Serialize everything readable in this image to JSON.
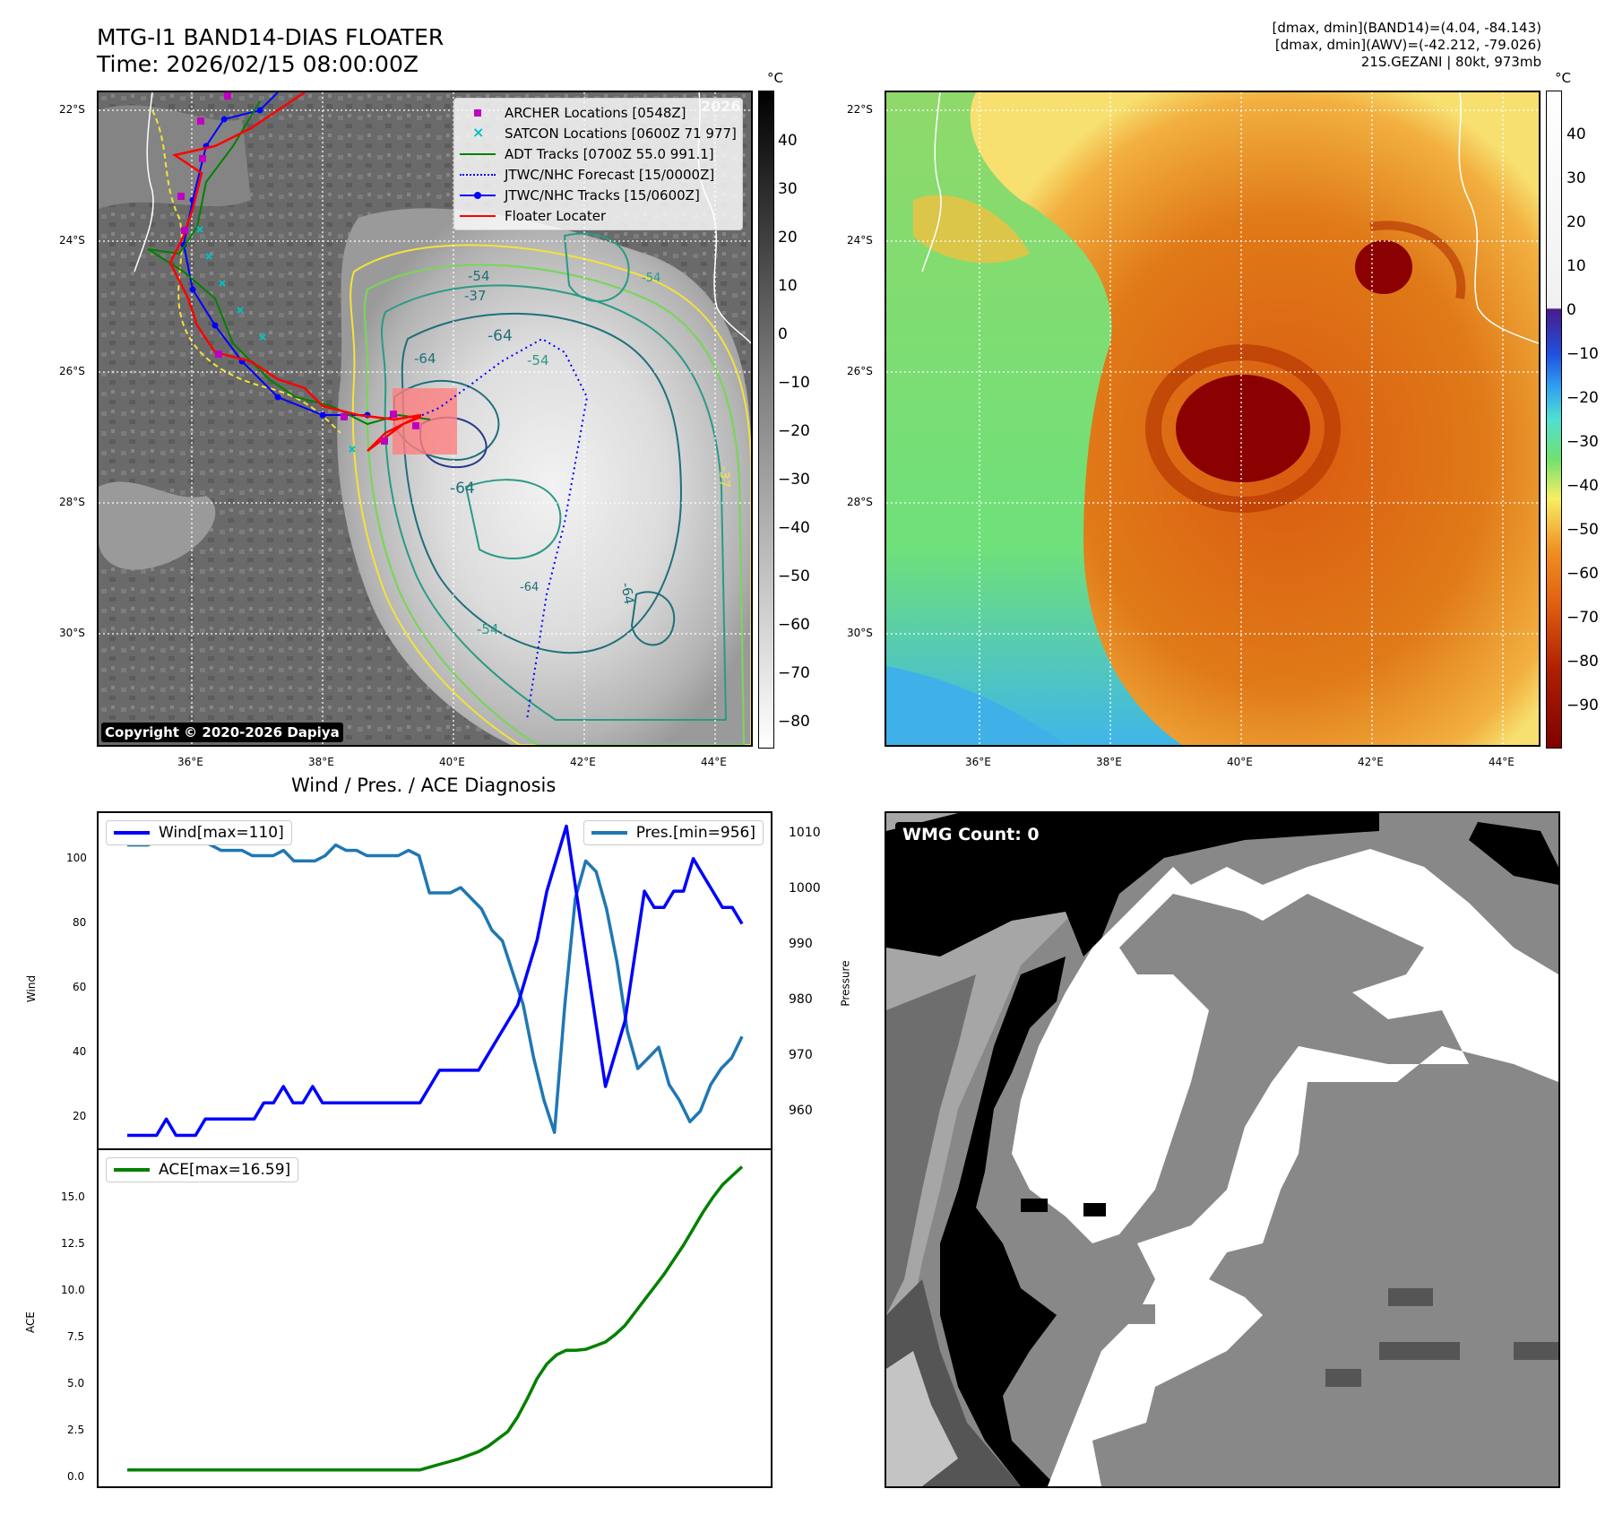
{
  "header": {
    "title_line1": "MTG-I1 BAND14-DIAS FLOATER",
    "title_line2": "Time: 2026/02/15 08:00:00Z",
    "info_line1": "[dmax, dmin](BAND14)=(4.04, -84.143)",
    "info_line2": "[dmax, dmin](AWV)=(-42.212, -79.026)",
    "info_line3": "21S.GEZANI | 80kt, 973mb"
  },
  "map": {
    "lat_labels": [
      "22°S",
      "24°S",
      "26°S",
      "28°S",
      "30°S"
    ],
    "lon_labels": [
      "36°E",
      "38°E",
      "40°E",
      "42°E",
      "44°E"
    ],
    "watermark": "2026",
    "copyright": "Copyright © 2020-2026 Dapiya",
    "contour_labels": [
      "-54",
      "-37",
      "-64",
      "-64",
      "-54",
      "-64",
      "-54",
      "-64",
      "-37",
      "-54",
      "-64"
    ],
    "colors": {
      "yellow": "#f4e23a",
      "light_green": "#7bd45c",
      "teal": "#2a9a86",
      "dark_teal": "#1f6f7a",
      "navy": "#2a3a8a"
    }
  },
  "legend": {
    "items": [
      {
        "label": "ARCHER Locations [0548Z]",
        "color": "#c000c0",
        "kind": "square"
      },
      {
        "label": "SATCON Locations [0600Z 71 977]",
        "color": "#00c0c0",
        "kind": "x"
      },
      {
        "label": "ADT Tracks [0700Z 55.0 991.1]",
        "color": "#008000",
        "kind": "line"
      },
      {
        "label": "JTWC/NHC Forecast [15/0000Z]",
        "color": "#0000ff",
        "kind": "dotted"
      },
      {
        "label": "JTWC/NHC Tracks [15/0600Z]",
        "color": "#0000ff",
        "kind": "line-dot"
      },
      {
        "label": "Floater Locater",
        "color": "#ff0000",
        "kind": "line"
      }
    ]
  },
  "colorbar1": {
    "unit": "°C",
    "ticks": [
      "40",
      "30",
      "20",
      "10",
      "0",
      "−10",
      "−20",
      "−30",
      "−40",
      "−50",
      "−60",
      "−70",
      "−80"
    ]
  },
  "colorbar2": {
    "unit": "°C",
    "ticks": [
      "40",
      "30",
      "20",
      "10",
      "0",
      "−10",
      "−20",
      "−30",
      "−40",
      "−50",
      "−60",
      "−70",
      "−80",
      "−90"
    ]
  },
  "diag": {
    "title": "Wind / Pres. / ACE Diagnosis",
    "wind_legend": "Wind[max=110]",
    "pres_legend": "Pres.[min=956]",
    "ace_legend": "ACE[max=16.59]",
    "wind_ylabel": "Wind",
    "pres_ylabel": "Pressure",
    "ace_ylabel": "ACE",
    "wind_ticks": [
      "100",
      "80",
      "60",
      "40",
      "20"
    ],
    "pres_ticks": [
      "1010",
      "1000",
      "990",
      "980",
      "970",
      "960"
    ],
    "ace_ticks": [
      "15.0",
      "12.5",
      "10.0",
      "7.5",
      "5.0",
      "2.5",
      "0.0"
    ]
  },
  "wmg": {
    "label": "WMG Count: 0"
  },
  "chart_data": [
    {
      "type": "line",
      "title": "Wind / Pres. / ACE Diagnosis",
      "ylabel": "Wind",
      "ylim": [
        11,
        114
      ],
      "series": [
        {
          "name": "Wind[max=110]",
          "color": "#0000ff",
          "values": [
            15,
            15,
            15,
            15,
            20,
            15,
            15,
            15,
            20,
            20,
            20,
            20,
            20,
            20,
            25,
            25,
            30,
            25,
            25,
            30,
            25,
            25,
            25,
            25,
            25,
            25,
            25,
            25,
            25,
            25,
            25,
            30,
            35,
            35,
            35,
            35,
            35,
            40,
            45,
            50,
            55,
            65,
            75,
            90,
            100,
            110,
            90,
            70,
            50,
            30,
            40,
            50,
            70,
            90,
            85,
            85,
            90,
            90,
            100,
            95,
            90,
            85,
            85,
            80
          ]
        }
      ]
    },
    {
      "type": "line",
      "ylabel": "Pressure",
      "ylim": [
        953,
        1016
      ],
      "series": [
        {
          "name": "Pres.[min=956]",
          "color": "#1f77b4",
          "values": [
            1010,
            1010,
            1010,
            1011,
            1011,
            1011,
            1011,
            1011,
            1010,
            1009,
            1009,
            1009,
            1008,
            1008,
            1008,
            1009,
            1007,
            1007,
            1007,
            1008,
            1010,
            1009,
            1009,
            1008,
            1008,
            1008,
            1008,
            1009,
            1008,
            1001,
            1001,
            1001,
            1002,
            1000,
            998,
            994,
            992,
            986,
            980,
            970,
            962,
            956,
            980,
            1000,
            1007,
            1005,
            998,
            988,
            975,
            968,
            970,
            972,
            965,
            962,
            958,
            960,
            965,
            968,
            970,
            974
          ]
        }
      ]
    },
    {
      "type": "line",
      "ylabel": "ACE",
      "ylim": [
        -0.9,
        17.5
      ],
      "series": [
        {
          "name": "ACE[max=16.59]",
          "color": "#008000",
          "values": [
            0,
            0,
            0,
            0,
            0,
            0,
            0,
            0,
            0,
            0,
            0,
            0,
            0,
            0,
            0,
            0,
            0,
            0,
            0,
            0,
            0,
            0,
            0,
            0,
            0,
            0,
            0,
            0,
            0,
            0,
            0,
            0.15,
            0.3,
            0.45,
            0.6,
            0.8,
            1.0,
            1.3,
            1.7,
            2.1,
            2.9,
            3.9,
            5.0,
            5.8,
            6.3,
            6.55,
            6.55,
            6.6,
            6.8,
            7.0,
            7.4,
            7.9,
            8.6,
            9.3,
            10.0,
            10.7,
            11.5,
            12.3,
            13.2,
            14.1,
            14.9,
            15.6,
            16.1,
            16.59
          ]
        }
      ]
    }
  ]
}
